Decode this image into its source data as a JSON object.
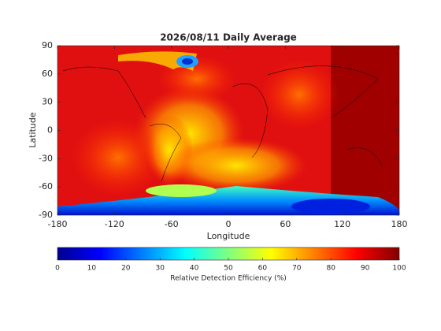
{
  "chart_data": {
    "type": "map-heatmap",
    "title": "2026/08/11 Daily Average",
    "xlabel": "Longitude",
    "ylabel": "Latitude",
    "xlim": [
      -180,
      180
    ],
    "xticks": [
      -180,
      -120,
      -60,
      0,
      60,
      120,
      180
    ],
    "ylim": [
      -90,
      90
    ],
    "yticks": [
      -90,
      -60,
      -30,
      0,
      30,
      60,
      90
    ],
    "colorbar": {
      "label": "Relative Detection Efficiency (%)",
      "lim": [
        0,
        100
      ],
      "ticks": [
        0,
        10,
        20,
        30,
        40,
        50,
        60,
        70,
        80,
        90,
        100
      ],
      "colormap": "jet"
    }
  }
}
